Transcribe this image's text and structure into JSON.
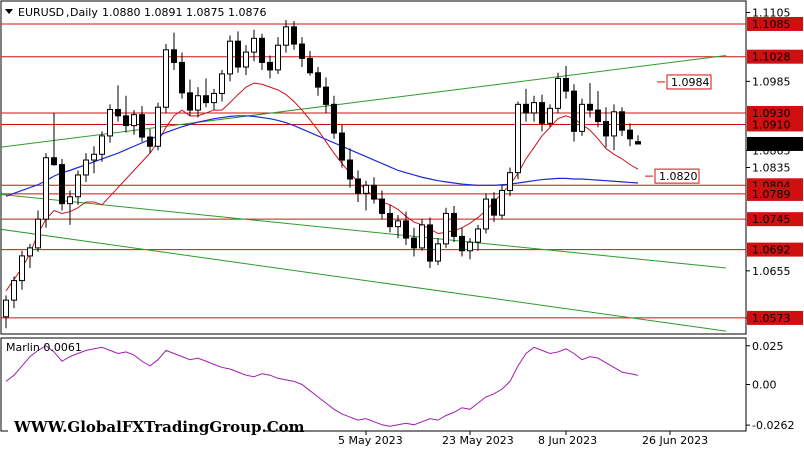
{
  "header": {
    "symbol": "EURUSD",
    "timeframe": "Daily",
    "ohlc": "1.0880 1.0891 1.0875 1.0876"
  },
  "watermark": "WWW.GlobalFXTradingGroup.Com",
  "colors": {
    "background": "#ffffff",
    "candle_up": "#ffffff",
    "candle_down": "#000000",
    "ma_red": "#d0101a",
    "ma_blue": "#1c2bd6",
    "level_line": "#d01010",
    "channel_line": "#2e9b2e",
    "oscillator": "#a020b0",
    "current_price_bg": "#000000",
    "current_price_fg": "#ffffff"
  },
  "chart_data": [
    {
      "type": "candlestick",
      "title": "EURUSD, Daily",
      "ylim": [
        1.0545,
        1.1125
      ],
      "price_ticks": [
        "1.1105",
        "1.0985",
        "1.0865",
        "1.0835",
        "1.0655",
        "1.0573"
      ],
      "tick_values": [
        1.1105,
        1.0985,
        1.0865,
        1.0835,
        1.0655,
        1.0573
      ],
      "x_labels": [
        {
          "label": "5 May 2023",
          "index": 45
        },
        {
          "label": "23 May 2023",
          "index": 58
        },
        {
          "label": "8 Jun 2023",
          "index": 70
        },
        {
          "label": "26 Jun 2023",
          "index": 83
        }
      ],
      "levels": [
        {
          "label": "1.1085",
          "value": 1.1085
        },
        {
          "label": "1.1028",
          "value": 1.1028
        },
        {
          "label": "1.0930",
          "value": 1.093
        },
        {
          "label": "1.0910",
          "value": 1.091
        },
        {
          "label": "1.0804",
          "value": 1.0804
        },
        {
          "label": "1.0789",
          "value": 1.0789
        },
        {
          "label": "1.0745",
          "value": 1.0745
        },
        {
          "label": "1.0692",
          "value": 1.0692
        },
        {
          "label": "1.0573",
          "value": 1.0573
        }
      ],
      "current_price": "1.0876",
      "annotations": [
        {
          "label": "1.0984",
          "value": 1.0984,
          "index": 95
        },
        {
          "label": "1.0820",
          "value": 1.082,
          "index": 92
        }
      ],
      "candles": [
        [
          1.0575,
          1.0612,
          1.0555,
          1.0604
        ],
        [
          1.0604,
          1.0645,
          1.059,
          1.0638
        ],
        [
          1.0638,
          1.069,
          1.0622,
          1.0681
        ],
        [
          1.0681,
          1.0702,
          1.066,
          1.0695
        ],
        [
          1.0695,
          1.076,
          1.0688,
          1.0745
        ],
        [
          1.0745,
          1.086,
          1.073,
          1.0852
        ],
        [
          1.0852,
          1.093,
          1.0838,
          1.084
        ],
        [
          1.084,
          1.085,
          1.076,
          1.0772
        ],
        [
          1.0772,
          1.0795,
          1.0735,
          1.0784
        ],
        [
          1.0784,
          1.083,
          1.077,
          1.0822
        ],
        [
          1.0822,
          1.086,
          1.081,
          1.0848
        ],
        [
          1.0848,
          1.0872,
          1.0825,
          1.0858
        ],
        [
          1.0858,
          1.0898,
          1.0845,
          1.089
        ],
        [
          1.089,
          1.0945,
          1.0878,
          1.0936
        ],
        [
          1.0936,
          1.0978,
          1.0915,
          1.0925
        ],
        [
          1.0925,
          1.096,
          1.0896,
          1.0908
        ],
        [
          1.0908,
          1.0935,
          1.0892,
          1.0927
        ],
        [
          1.0927,
          1.0942,
          1.088,
          1.0888
        ],
        [
          1.0888,
          1.0902,
          1.086,
          1.0872
        ],
        [
          1.0872,
          1.0948,
          1.0865,
          1.094
        ],
        [
          1.094,
          1.105,
          1.093,
          1.104
        ],
        [
          1.104,
          1.107,
          1.1005,
          1.1018
        ],
        [
          1.1018,
          1.1035,
          1.0955,
          1.0965
        ],
        [
          1.0965,
          1.0988,
          1.0925,
          1.0935
        ],
        [
          1.0935,
          1.0975,
          1.0922,
          1.096
        ],
        [
          1.096,
          1.099,
          1.094,
          1.0948
        ],
        [
          1.0948,
          1.0972,
          1.0935,
          1.0964
        ],
        [
          1.0964,
          1.1005,
          1.095,
          1.0998
        ],
        [
          1.0998,
          1.1065,
          1.0985,
          1.1055
        ],
        [
          1.1055,
          1.1072,
          1.1,
          1.101
        ],
        [
          1.101,
          1.1048,
          1.0996,
          1.1036
        ],
        [
          1.1036,
          1.1075,
          1.102,
          1.106
        ],
        [
          1.106,
          1.1068,
          1.1005,
          1.1018
        ],
        [
          1.1018,
          1.103,
          1.099,
          1.1005
        ],
        [
          1.1005,
          1.1062,
          1.0998,
          1.1048
        ],
        [
          1.1048,
          1.1092,
          1.1035,
          1.108
        ],
        [
          1.108,
          1.109,
          1.104,
          1.105
        ],
        [
          1.105,
          1.1062,
          1.101,
          1.1025
        ],
        [
          1.1025,
          1.1038,
          1.0995,
          1.1
        ],
        [
          1.1,
          1.101,
          1.096,
          1.0975
        ],
        [
          1.0975,
          1.0992,
          1.093,
          1.0945
        ],
        [
          1.0945,
          1.096,
          1.0885,
          1.0895
        ],
        [
          1.0895,
          1.091,
          1.0835,
          1.0848
        ],
        [
          1.0848,
          1.0868,
          1.08,
          1.0815
        ],
        [
          1.0815,
          1.083,
          1.0775,
          1.079
        ],
        [
          1.079,
          1.0812,
          1.076,
          1.0804
        ],
        [
          1.0804,
          1.0818,
          1.0772,
          1.078
        ],
        [
          1.078,
          1.0795,
          1.0745,
          1.0755
        ],
        [
          1.0755,
          1.077,
          1.0722,
          1.0732
        ],
        [
          1.0732,
          1.0752,
          1.0712,
          1.0742
        ],
        [
          1.0742,
          1.0758,
          1.07,
          1.0712
        ],
        [
          1.0712,
          1.073,
          1.068,
          1.0695
        ],
        [
          1.0695,
          1.0745,
          1.069,
          1.0735
        ],
        [
          1.0735,
          1.0748,
          1.066,
          1.0672
        ],
        [
          1.0672,
          1.0712,
          1.0665,
          1.0702
        ],
        [
          1.0702,
          1.0765,
          1.0695,
          1.0755
        ],
        [
          1.0755,
          1.0768,
          1.0705,
          1.0715
        ],
        [
          1.0715,
          1.073,
          1.068,
          1.069
        ],
        [
          1.069,
          1.0712,
          1.0675,
          1.0705
        ],
        [
          1.0705,
          1.0735,
          1.069,
          1.0728
        ],
        [
          1.0728,
          1.079,
          1.072,
          1.078
        ],
        [
          1.078,
          1.0792,
          1.074,
          1.0752
        ],
        [
          1.0752,
          1.0805,
          1.0745,
          1.0795
        ],
        [
          1.0795,
          1.0835,
          1.0785,
          1.0826
        ],
        [
          1.0826,
          1.095,
          1.0815,
          1.0945
        ],
        [
          1.0945,
          1.0972,
          1.0915,
          1.093
        ],
        [
          1.093,
          1.096,
          1.0915,
          1.0948
        ],
        [
          1.0948,
          1.0962,
          1.0898,
          1.0912
        ],
        [
          1.0912,
          1.0945,
          1.0905,
          1.0938
        ],
        [
          1.0938,
          1.1,
          1.093,
          1.099
        ],
        [
          1.099,
          1.1012,
          1.0955,
          1.0968
        ],
        [
          1.0968,
          1.098,
          1.088,
          1.0898
        ],
        [
          1.0898,
          1.0955,
          1.089,
          1.0945
        ],
        [
          1.0945,
          1.0982,
          1.0922,
          1.0935
        ],
        [
          1.0935,
          1.0968,
          1.0905,
          1.0915
        ],
        [
          1.0915,
          1.094,
          1.087,
          1.089
        ],
        [
          1.089,
          1.0945,
          1.0865,
          1.0932
        ],
        [
          1.0932,
          1.094,
          1.089,
          1.09
        ],
        [
          1.09,
          1.0912,
          1.0872,
          1.0885
        ],
        [
          1.088,
          1.0891,
          1.0875,
          1.0876
        ]
      ],
      "ma_red": [
        1.062,
        1.064,
        1.066,
        1.0685,
        1.072,
        1.0745,
        1.076,
        1.0755,
        1.0758,
        1.0765,
        1.0775,
        1.0775,
        1.077,
        1.0785,
        1.08,
        1.0815,
        1.083,
        1.0845,
        1.086,
        1.088,
        1.0905,
        1.0925,
        1.0935,
        1.0925,
        1.0925,
        1.093,
        1.0935,
        1.0935,
        1.0948,
        1.0962,
        1.0975,
        1.0982,
        1.098,
        1.0975,
        1.097,
        1.0962,
        1.095,
        1.0935,
        1.0918,
        1.09,
        1.088,
        1.086,
        1.0842,
        1.0825,
        1.081,
        1.0795,
        1.0785,
        1.0775,
        1.077,
        1.0762,
        1.075,
        1.074,
        1.0735,
        1.0728,
        1.072,
        1.0722,
        1.0725,
        1.073,
        1.0738,
        1.0748,
        1.076,
        1.0775,
        1.079,
        1.0805,
        1.0825,
        1.085,
        1.087,
        1.089,
        1.0905,
        1.092,
        1.0925,
        1.092,
        1.091,
        1.09,
        1.0885,
        1.0868,
        1.0858,
        1.085,
        1.084,
        1.0832
      ],
      "ma_blue": [
        1.0785,
        1.079,
        1.0795,
        1.08,
        1.0805,
        1.0812,
        1.082,
        1.0826,
        1.083,
        1.0835,
        1.084,
        1.0845,
        1.085,
        1.0855,
        1.086,
        1.0866,
        1.0872,
        1.0878,
        1.0884,
        1.089,
        1.0896,
        1.0901,
        1.0906,
        1.091,
        1.0914,
        1.0917,
        1.092,
        1.0922,
        1.0924,
        1.0925,
        1.0925,
        1.0924,
        1.0922,
        1.092,
        1.0917,
        1.0913,
        1.0908,
        1.0902,
        1.0896,
        1.089,
        1.0884,
        1.0878,
        1.0872,
        1.0866,
        1.086,
        1.0854,
        1.0848,
        1.0842,
        1.0836,
        1.083,
        1.0826,
        1.0822,
        1.0818,
        1.0815,
        1.0812,
        1.081,
        1.0808,
        1.0806,
        1.0805,
        1.0804,
        1.0804,
        1.0804,
        1.0805,
        1.0806,
        1.0808,
        1.081,
        1.0812,
        1.0814,
        1.0815,
        1.0816,
        1.0816,
        1.0815,
        1.0815,
        1.0814,
        1.0813,
        1.0812,
        1.0811,
        1.081,
        1.0809,
        1.0808
      ]
    },
    {
      "type": "line",
      "name": "Marlin",
      "title": "Marlin 0.0061",
      "ylim": [
        -0.03,
        0.03
      ],
      "ticks": [
        "0.025",
        "0.00",
        "-0.0262"
      ],
      "tick_values": [
        0.025,
        0.0,
        -0.0262
      ],
      "values": [
        0.002,
        0.006,
        0.012,
        0.018,
        0.022,
        0.025,
        0.021,
        0.015,
        0.018,
        0.02,
        0.022,
        0.023,
        0.024,
        0.022,
        0.02,
        0.021,
        0.019,
        0.015,
        0.012,
        0.016,
        0.022,
        0.02,
        0.018,
        0.016,
        0.017,
        0.015,
        0.013,
        0.011,
        0.01,
        0.008,
        0.006,
        0.005,
        0.007,
        0.006,
        0.004,
        0.003,
        0.002,
        0.0,
        -0.004,
        -0.008,
        -0.012,
        -0.016,
        -0.019,
        -0.021,
        -0.023,
        -0.022,
        -0.024,
        -0.026,
        -0.027,
        -0.026,
        -0.025,
        -0.026,
        -0.024,
        -0.022,
        -0.023,
        -0.02,
        -0.018,
        -0.015,
        -0.016,
        -0.012,
        -0.008,
        -0.006,
        -0.003,
        0.002,
        0.012,
        0.02,
        0.024,
        0.022,
        0.02,
        0.021,
        0.023,
        0.02,
        0.016,
        0.018,
        0.017,
        0.014,
        0.011,
        0.008,
        0.007,
        0.006
      ]
    }
  ]
}
